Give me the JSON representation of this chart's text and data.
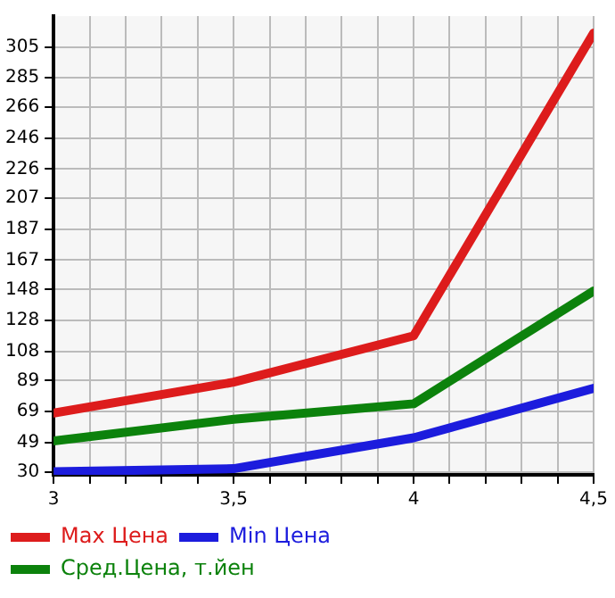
{
  "chart_data": {
    "type": "line",
    "x": [
      3,
      3.5,
      4,
      4.5
    ],
    "series": [
      {
        "name": "Max Цена",
        "color": "#dd1c1c",
        "values": [
          68,
          88,
          118,
          314
        ]
      },
      {
        "name": "Min Цена",
        "color": "#1c1cdd",
        "values": [
          30,
          32,
          52,
          84
        ]
      },
      {
        "name": "Сред.Цена, т.йен",
        "color": "#0c820c",
        "values": [
          50,
          64,
          74,
          147
        ]
      }
    ],
    "xlim": [
      3,
      4.5
    ],
    "xticks": [
      3,
      {
        "value": 3.1,
        "label": null
      },
      {
        "value": 3.2,
        "label": null
      },
      {
        "value": 3.3,
        "label": null
      },
      {
        "value": 3.4,
        "label": null
      },
      {
        "value": 3.5,
        "label": "3,5"
      },
      {
        "value": 3.6,
        "label": null
      },
      {
        "value": 3.7,
        "label": null
      },
      {
        "value": 3.8,
        "label": null
      },
      {
        "value": 3.9,
        "label": null
      },
      4,
      {
        "value": 4.1,
        "label": null
      },
      {
        "value": 4.2,
        "label": null
      },
      {
        "value": 4.3,
        "label": null
      },
      {
        "value": 4.4,
        "label": null
      },
      {
        "value": 4.5,
        "label": "4,5"
      }
    ],
    "ylim": [
      28,
      325
    ],
    "yticks": [
      30,
      49,
      69,
      89,
      108,
      128,
      148,
      167,
      187,
      207,
      226,
      246,
      266,
      285,
      305
    ],
    "grid": true,
    "legend": "bottom",
    "marker": "none",
    "line_style": "solid"
  }
}
